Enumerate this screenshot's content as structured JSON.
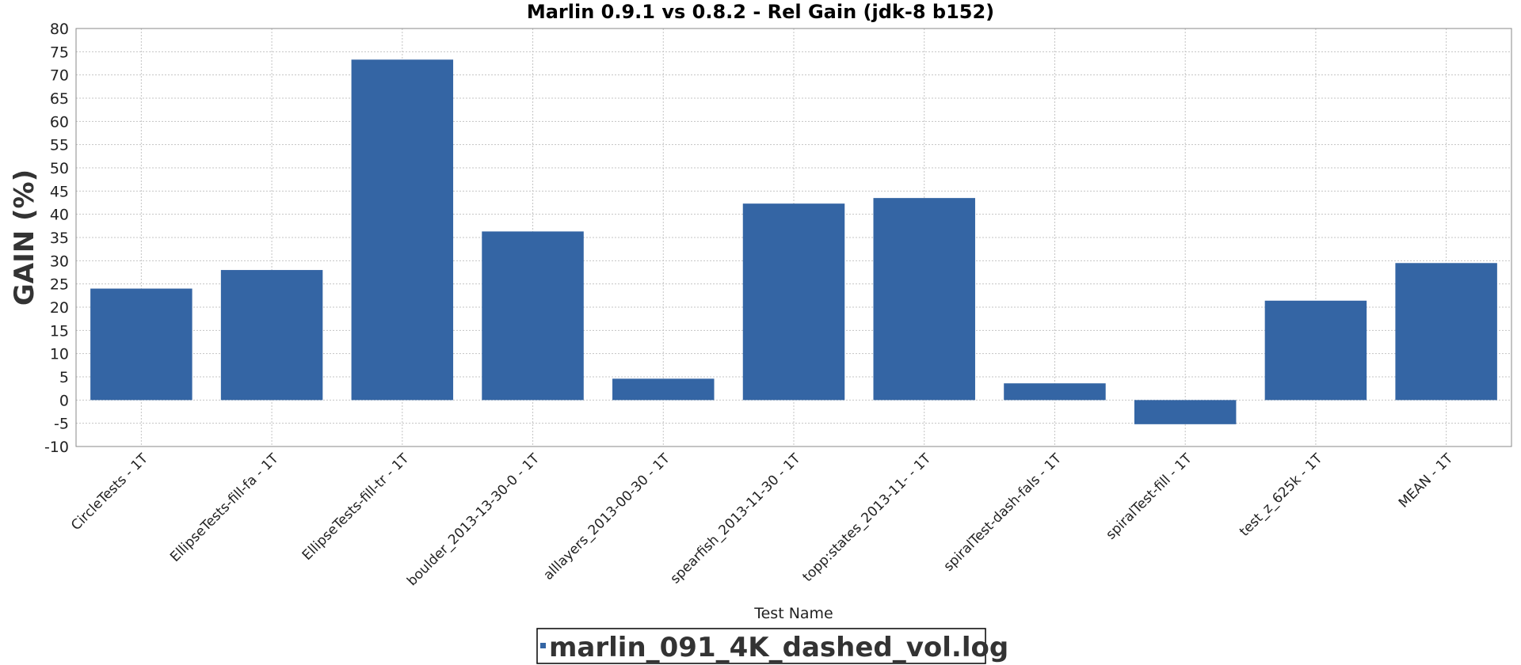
{
  "chart_data": {
    "type": "bar",
    "title": "Marlin 0.9.1 vs 0.8.2 - Rel Gain (jdk-8 b152)",
    "xlabel": "Test Name",
    "ylabel": "GAIN (%)",
    "ylim": [
      -10,
      80
    ],
    "yticks": [
      80,
      75,
      70,
      65,
      60,
      55,
      50,
      45,
      40,
      35,
      30,
      25,
      20,
      15,
      10,
      5,
      0,
      -5,
      -10
    ],
    "grid": true,
    "legend_position": "bottom",
    "categories": [
      "CircleTests - 1T",
      "EllipseTests-fill-fa - 1T",
      "EllipseTests-fill-tr - 1T",
      "boulder_2013-13-30-0 - 1T",
      "alllayers_2013-00-30 - 1T",
      "spearfish_2013-11-30 - 1T",
      "topp:states_2013-11- - 1T",
      "spiralTest-dash-fals - 1T",
      "spiralTest-fill - 1T",
      "test_z_625k - 1T",
      "MEAN - 1T"
    ],
    "series": [
      {
        "name": "marlin_091_4K_dashed_vol.log",
        "color": "#3465a4",
        "values": [
          24.0,
          28.0,
          73.3,
          36.3,
          4.6,
          42.3,
          43.5,
          3.6,
          -5.2,
          21.4,
          29.5
        ]
      }
    ]
  }
}
